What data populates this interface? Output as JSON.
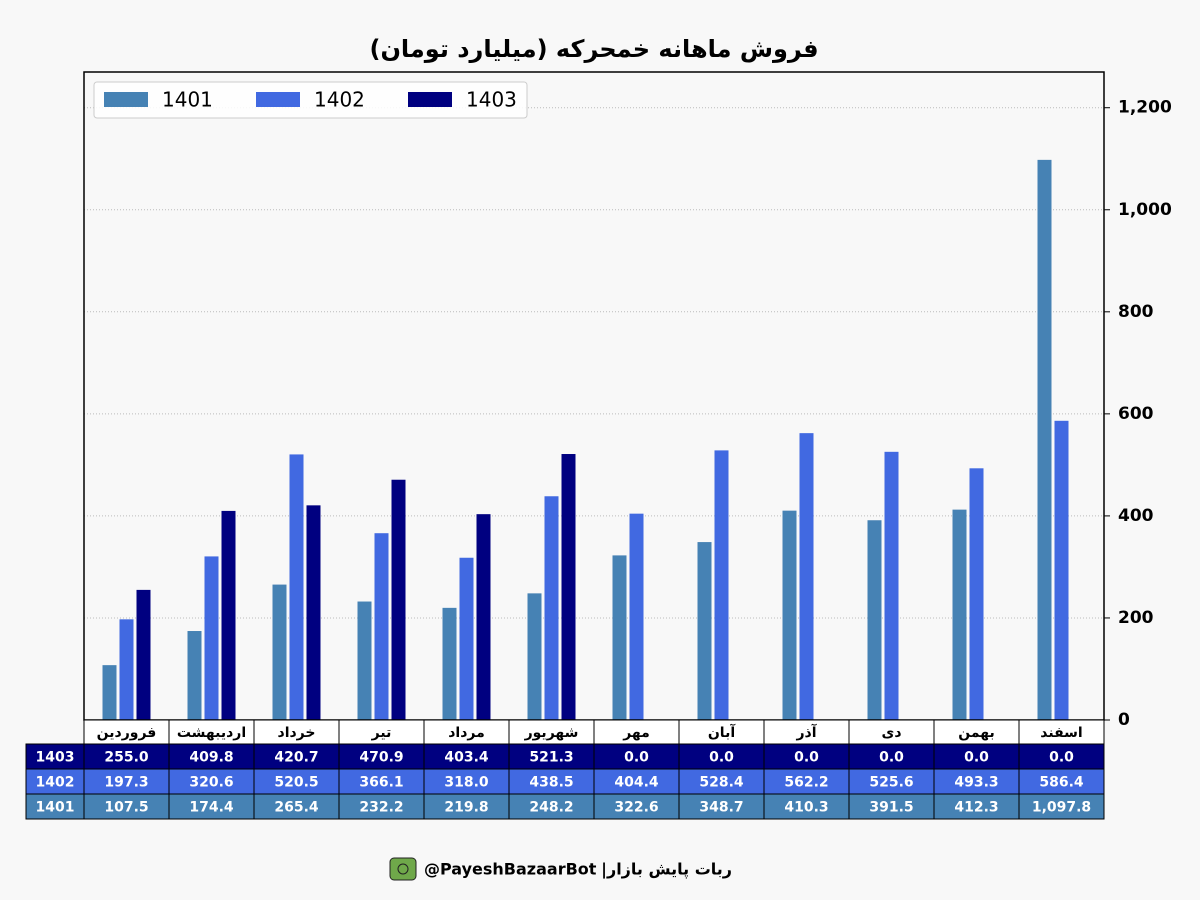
{
  "chart_data": {
    "type": "bar",
    "title": "فروش ماهانه خمحرکه (میلیارد تومان)",
    "categories": [
      "فروردین",
      "اردیبهشت",
      "خرداد",
      "تیر",
      "مرداد",
      "شهریور",
      "مهر",
      "آبان",
      "آذر",
      "دی",
      "بهمن",
      "اسفند"
    ],
    "series": [
      {
        "name": "1401",
        "color": "#4682b4",
        "values": [
          107.5,
          174.4,
          265.4,
          232.2,
          219.8,
          248.2,
          322.6,
          348.7,
          410.3,
          391.5,
          412.3,
          1097.8
        ],
        "value_labels": [
          "107.5",
          "174.4",
          "265.4",
          "232.2",
          "219.8",
          "248.2",
          "322.6",
          "348.7",
          "410.3",
          "391.5",
          "412.3",
          "1,097.8"
        ]
      },
      {
        "name": "1402",
        "color": "#4169e1",
        "values": [
          197.3,
          320.6,
          520.5,
          366.1,
          318,
          438.5,
          404.4,
          528.4,
          562.2,
          525.6,
          493.3,
          586.4
        ],
        "value_labels": [
          "197.3",
          "320.6",
          "520.5",
          "366.1",
          "318.0",
          "438.5",
          "404.4",
          "528.4",
          "562.2",
          "525.6",
          "493.3",
          "586.4"
        ]
      },
      {
        "name": "1403",
        "color": "#000080",
        "values": [
          255,
          409.8,
          420.7,
          470.9,
          403.4,
          521.3,
          0,
          0,
          0,
          0,
          0,
          0
        ],
        "value_labels": [
          "255.0",
          "409.8",
          "420.7",
          "470.9",
          "403.4",
          "521.3",
          "0.0",
          "0.0",
          "0.0",
          "0.0",
          "0.0",
          "0.0"
        ]
      }
    ],
    "ylim": [
      0,
      1270
    ],
    "yticks": [
      0,
      200,
      400,
      600,
      800,
      {
        "value": 1000,
        "label": "1,000"
      },
      {
        "value": 1200,
        "label": "1,200"
      }
    ],
    "y_axis_side": "right",
    "grid": true,
    "legend": "upper left"
  },
  "footer": {
    "bot_name": "ربات پایش بازار",
    "separator": "|",
    "handle": "@PayeshBazaarBot"
  }
}
